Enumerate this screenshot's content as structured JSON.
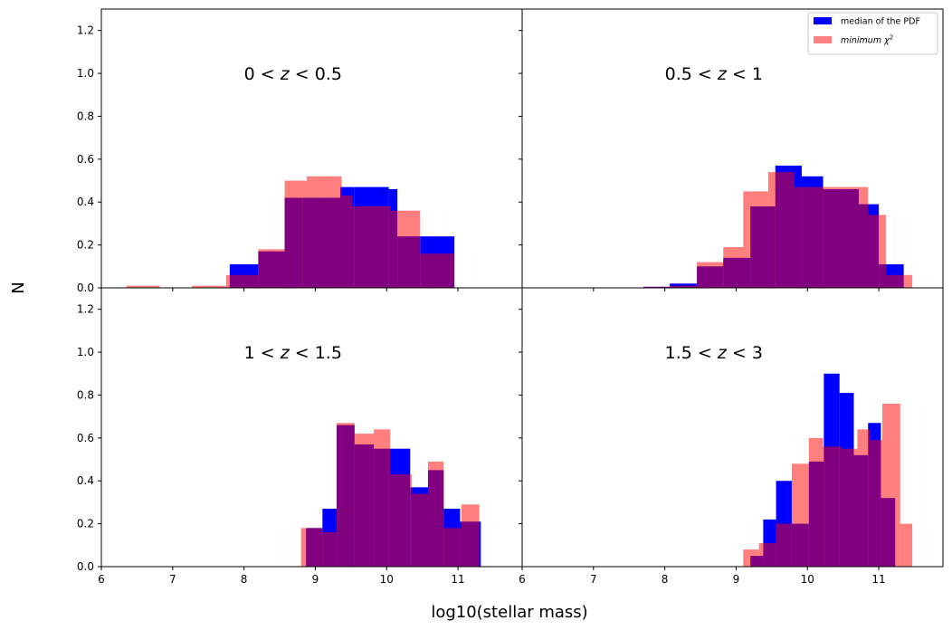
{
  "figure": {
    "xlabel": "log10(stellar mass)",
    "ylabel": "N"
  },
  "legend": {
    "placement": "upper-right",
    "entries": [
      {
        "label": "median of the PDF",
        "color": "#0000ff"
      },
      {
        "label_prefix": "minimum",
        "label_symbol": "χ",
        "label_sup": "2",
        "color": "#ff8080"
      }
    ]
  },
  "colors": {
    "median_pdf": "#0000ff",
    "minimum_chi2": "#ff8080",
    "overlap": "#800080"
  },
  "chart_data": [
    {
      "type": "histogram",
      "title_text": "0 < z < 0.5",
      "xlim": [
        6,
        11.9
      ],
      "ylim": [
        0,
        1.3
      ],
      "xticks": [
        6,
        7,
        8,
        9,
        10,
        11
      ],
      "yticks": [
        0.0,
        0.2,
        0.4,
        0.6,
        0.8,
        1.0,
        1.2
      ],
      "series": [
        {
          "name": "median of the PDF",
          "bins": [
            [
              7.8,
              8.2,
              0.11
            ],
            [
              8.2,
              8.57,
              0.17
            ],
            [
              8.57,
              8.82,
              0.42
            ],
            [
              8.82,
              9.35,
              0.42
            ],
            [
              9.35,
              9.55,
              0.47
            ],
            [
              9.55,
              10.03,
              0.47
            ],
            [
              10.03,
              10.15,
              0.46
            ],
            [
              10.15,
              10.47,
              0.24
            ],
            [
              10.47,
              10.95,
              0.24
            ]
          ]
        },
        {
          "name": "minimum chi2",
          "bins": [
            [
              6.35,
              6.82,
              0.01
            ],
            [
              7.27,
              7.75,
              0.01
            ],
            [
              7.75,
              7.82,
              0.06
            ],
            [
              7.82,
              8.2,
              0.06
            ],
            [
              8.2,
              8.57,
              0.18
            ],
            [
              8.57,
              8.88,
              0.5
            ],
            [
              8.88,
              9.37,
              0.52
            ],
            [
              9.37,
              9.52,
              0.43
            ],
            [
              9.52,
              10.05,
              0.38
            ],
            [
              10.05,
              10.15,
              0.36
            ],
            [
              10.15,
              10.47,
              0.36
            ],
            [
              10.47,
              10.95,
              0.16
            ]
          ]
        }
      ]
    },
    {
      "type": "histogram",
      "title_text": "0.5 < z < 1",
      "xlim": [
        6,
        11.9
      ],
      "ylim": [
        0,
        1.3
      ],
      "xticks": [
        6,
        7,
        8,
        9,
        10,
        11
      ],
      "yticks": [
        0.0,
        0.2,
        0.4,
        0.6,
        0.8,
        1.0,
        1.2
      ],
      "series": [
        {
          "name": "median of the PDF",
          "bins": [
            [
              7.7,
              8.07,
              0.005
            ],
            [
              8.07,
              8.45,
              0.02
            ],
            [
              8.45,
              8.82,
              0.1
            ],
            [
              8.82,
              9.2,
              0.14
            ],
            [
              9.2,
              9.55,
              0.38
            ],
            [
              9.55,
              9.92,
              0.57
            ],
            [
              9.92,
              10.22,
              0.52
            ],
            [
              10.22,
              10.72,
              0.46
            ],
            [
              10.72,
              11.0,
              0.39
            ],
            [
              11.0,
              11.35,
              0.11
            ]
          ]
        },
        {
          "name": "minimum chi2",
          "bins": [
            [
              7.7,
              8.07,
              0.005
            ],
            [
              8.07,
              8.45,
              0.01
            ],
            [
              8.45,
              8.82,
              0.12
            ],
            [
              8.82,
              9.1,
              0.19
            ],
            [
              9.1,
              9.45,
              0.45
            ],
            [
              9.45,
              9.82,
              0.54
            ],
            [
              9.82,
              10.2,
              0.47
            ],
            [
              10.2,
              10.52,
              0.47
            ],
            [
              10.52,
              10.85,
              0.47
            ],
            [
              10.85,
              11.1,
              0.34
            ],
            [
              11.1,
              11.47,
              0.06
            ]
          ]
        }
      ]
    },
    {
      "type": "histogram",
      "title_text": "1 < z < 1.5",
      "xlim": [
        6,
        11.9
      ],
      "ylim": [
        0,
        1.3
      ],
      "xticks": [
        6,
        7,
        8,
        9,
        10,
        11
      ],
      "yticks": [
        0.0,
        0.2,
        0.4,
        0.6,
        0.8,
        1.0,
        1.2
      ],
      "series": [
        {
          "name": "median of the PDF",
          "bins": [
            [
              8.87,
              9.1,
              0.18
            ],
            [
              9.1,
              9.3,
              0.27
            ],
            [
              9.3,
              9.55,
              0.66
            ],
            [
              9.55,
              9.82,
              0.57
            ],
            [
              9.82,
              10.03,
              0.55
            ],
            [
              10.03,
              10.33,
              0.55
            ],
            [
              10.33,
              10.58,
              0.37
            ],
            [
              10.58,
              10.8,
              0.45
            ],
            [
              10.8,
              11.03,
              0.27
            ],
            [
              11.03,
              11.32,
              0.21
            ]
          ]
        },
        {
          "name": "minimum chi2",
          "bins": [
            [
              8.8,
              9.1,
              0.18
            ],
            [
              9.1,
              9.3,
              0.16
            ],
            [
              9.3,
              9.55,
              0.67
            ],
            [
              9.55,
              9.82,
              0.62
            ],
            [
              9.82,
              10.05,
              0.64
            ],
            [
              10.05,
              10.35,
              0.43
            ],
            [
              10.35,
              10.58,
              0.34
            ],
            [
              10.58,
              10.8,
              0.49
            ],
            [
              10.8,
              11.05,
              0.18
            ],
            [
              11.05,
              11.3,
              0.29
            ]
          ]
        }
      ]
    },
    {
      "type": "histogram",
      "title_text": "1.5 < z < 3",
      "xlim": [
        6,
        11.9
      ],
      "ylim": [
        0,
        1.3
      ],
      "xticks": [
        6,
        7,
        8,
        9,
        10,
        11
      ],
      "yticks": [
        0.0,
        0.2,
        0.4,
        0.6,
        0.8,
        1.0,
        1.2
      ],
      "series": [
        {
          "name": "median of the PDF",
          "bins": [
            [
              9.2,
              9.38,
              0.05
            ],
            [
              9.38,
              9.56,
              0.22
            ],
            [
              9.56,
              9.78,
              0.4
            ],
            [
              9.78,
              10.02,
              0.2
            ],
            [
              10.02,
              10.23,
              0.49
            ],
            [
              10.23,
              10.45,
              0.9
            ],
            [
              10.45,
              10.65,
              0.81
            ],
            [
              10.65,
              10.85,
              0.52
            ],
            [
              10.85,
              11.03,
              0.67
            ],
            [
              11.03,
              11.23,
              0.32
            ]
          ]
        },
        {
          "name": "minimum chi2",
          "bins": [
            [
              9.1,
              9.32,
              0.08
            ],
            [
              9.32,
              9.56,
              0.11
            ],
            [
              9.56,
              9.78,
              0.2
            ],
            [
              9.78,
              10.02,
              0.48
            ],
            [
              10.02,
              10.22,
              0.6
            ],
            [
              10.22,
              10.47,
              0.56
            ],
            [
              10.47,
              10.7,
              0.55
            ],
            [
              10.7,
              10.88,
              0.64
            ],
            [
              10.88,
              11.05,
              0.59
            ],
            [
              11.05,
              11.3,
              0.76
            ],
            [
              11.3,
              11.47,
              0.2
            ]
          ]
        }
      ]
    }
  ]
}
